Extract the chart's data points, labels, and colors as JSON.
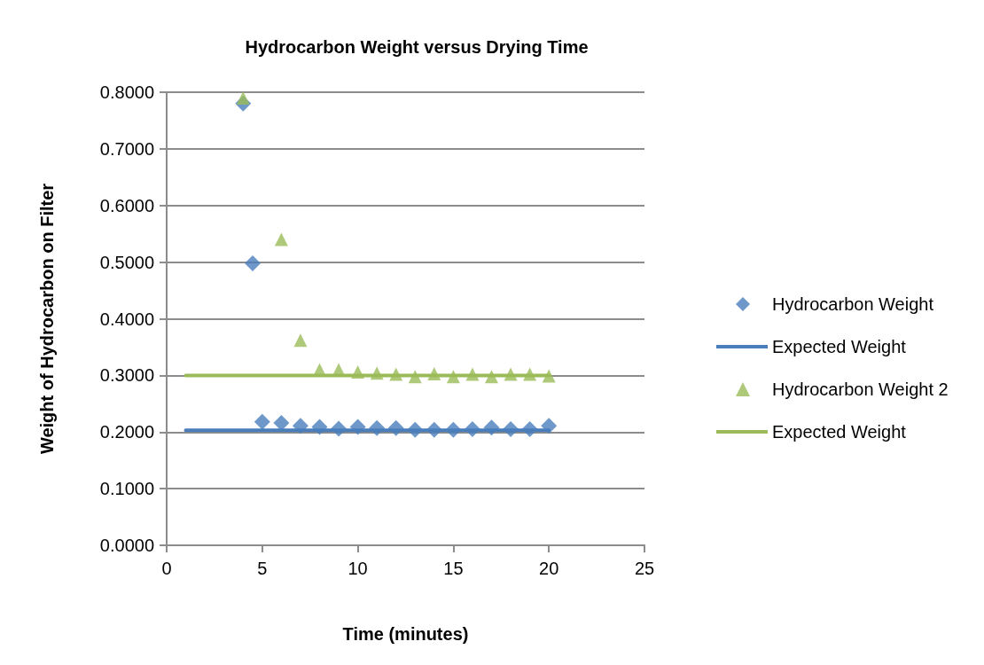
{
  "chart_data": {
    "type": "scatter",
    "title": "Hydrocarbon Weight versus Drying Time",
    "xlabel": "Time (minutes)",
    "ylabel": "Weight of Hydrocarbon on Filter",
    "xlim": [
      0,
      25
    ],
    "xticks": [
      0,
      5,
      10,
      15,
      20,
      25
    ],
    "ylim": [
      0,
      0.8
    ],
    "yticks": [
      {
        "value": 0,
        "label": "0.0000"
      },
      {
        "value": 0.1,
        "label": "0.1000"
      },
      {
        "value": 0.2,
        "label": "0.2000"
      },
      {
        "value": 0.3,
        "label": "0.3000"
      },
      {
        "value": 0.4,
        "label": "0.4000"
      },
      {
        "value": 0.5,
        "label": "0.5000"
      },
      {
        "value": 0.6,
        "label": "0.6000"
      },
      {
        "value": 0.7,
        "label": "0.7000"
      },
      {
        "value": 0.8,
        "label": "0.8000"
      }
    ],
    "grid": "y",
    "legend": "right",
    "series": [
      {
        "name": "Hydrocarbon Weight",
        "type": "scatter",
        "marker": "diamond",
        "color": "#4a7ebb",
        "x": [
          4,
          4.5,
          5,
          6,
          7,
          8,
          9,
          10,
          11,
          12,
          13,
          14,
          15,
          16,
          17,
          18,
          19,
          20
        ],
        "values": [
          0.78,
          0.498,
          0.218,
          0.216,
          0.211,
          0.209,
          0.206,
          0.209,
          0.207,
          0.207,
          0.204,
          0.204,
          0.204,
          0.205,
          0.208,
          0.205,
          0.205,
          0.211
        ]
      },
      {
        "name": "Expected Weight",
        "type": "line",
        "marker": "none",
        "color": "#4a7ebb",
        "x": [
          1,
          20
        ],
        "values": [
          0.203,
          0.203
        ]
      },
      {
        "name": "Hydrocarbon Weight 2",
        "type": "scatter",
        "marker": "triangle",
        "color": "#9bbb59",
        "x": [
          4,
          6,
          7,
          8,
          9,
          10,
          11,
          12,
          13,
          14,
          15,
          16,
          17,
          18,
          19,
          20
        ],
        "values": [
          0.79,
          0.54,
          0.362,
          0.31,
          0.31,
          0.306,
          0.304,
          0.302,
          0.298,
          0.303,
          0.298,
          0.302,
          0.298,
          0.302,
          0.302,
          0.299
        ]
      },
      {
        "name": "Expected Weight",
        "type": "line",
        "marker": "none",
        "color": "#9bbb59",
        "x": [
          1,
          20
        ],
        "values": [
          0.3,
          0.3
        ]
      }
    ]
  }
}
